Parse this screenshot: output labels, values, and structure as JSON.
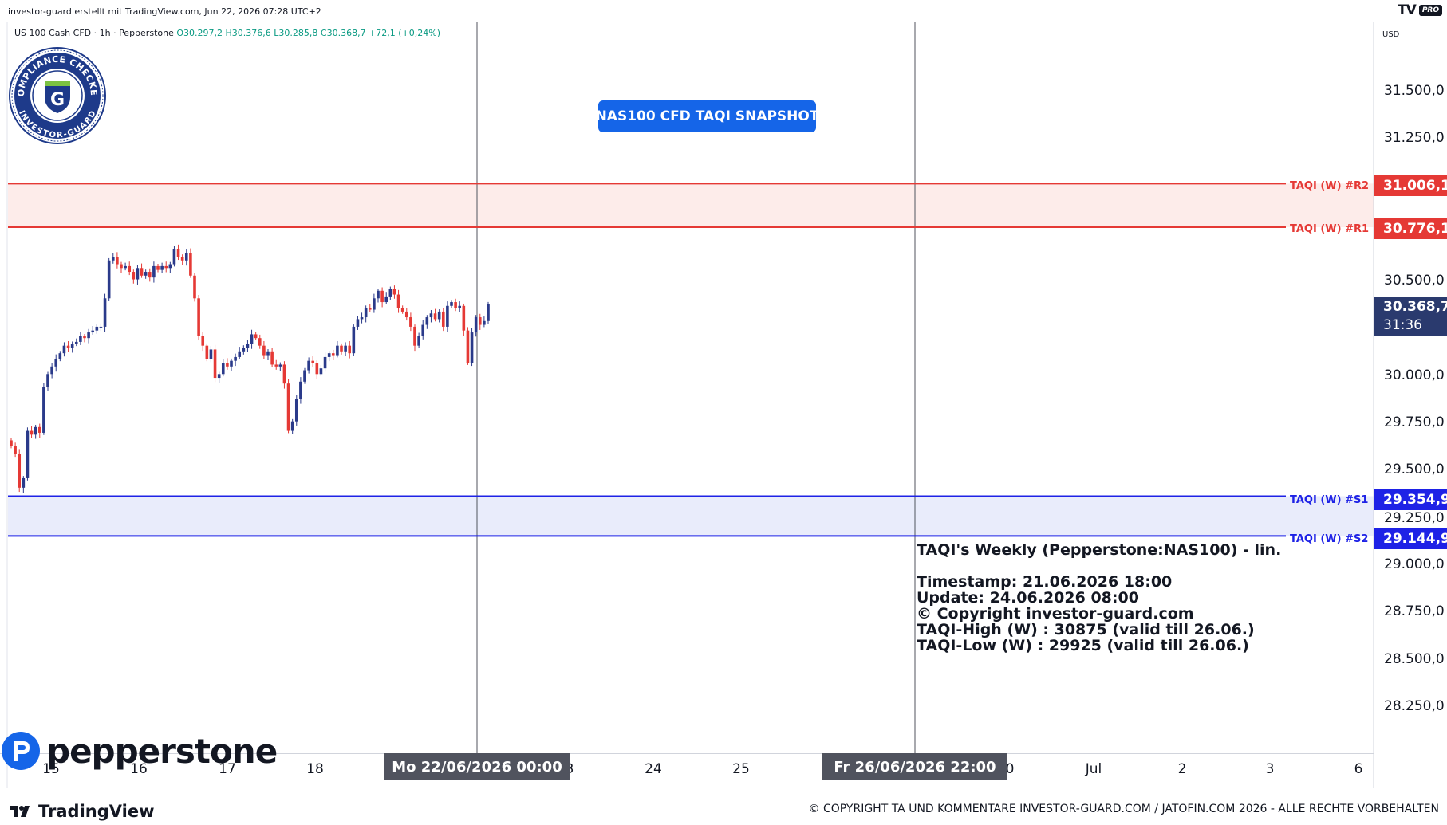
{
  "header": {
    "created_text": "investor-guard erstellt mit TradingView.com, Jun 22, 2026 07:28 UTC+2",
    "tv_pro_logo": "TV",
    "tv_pro_badge": "PRO",
    "currency": "USD"
  },
  "legend": {
    "symbol": "US 100 Cash CFD · 1h · Pepperstone",
    "open": "O30.297,2",
    "high": "H30.376,6",
    "low": "L30.285,8",
    "close": "C30.368,7",
    "change": "+72,1 (+0,24%)"
  },
  "badge": {
    "text_top": "COMPLIANCE CHECKED",
    "text_bottom": "INVESTOR-GUARD",
    "letter": "G"
  },
  "snapshot_label": "NAS100 CFD TAQI SNAPSHOT",
  "info_box": {
    "line1": "TAQI's Weekly (Pepperstone:NAS100) - lin.",
    "line2": "",
    "line3": "Timestamp: 21.06.2026 18:00",
    "line4": "Update: 24.06.2026 08:00",
    "line5": "© Copyright investor-guard.com",
    "line6": "TAQI-High (W) : 30875 (valid till 26.06.)",
    "line7": "TAQI-Low (W) : 29925 (valid till 26.06.)"
  },
  "levels": [
    {
      "name": "TAQI (W) #R2",
      "value": 31006.1,
      "label": "31.006,1",
      "color": "#e53935"
    },
    {
      "name": "TAQI (W) #R1",
      "value": 30776.1,
      "label": "30.776,1",
      "color": "#e53935"
    },
    {
      "name": "TAQI (W) #S1",
      "value": 29354.9,
      "label": "29.354,9",
      "color": "#1e22e6"
    },
    {
      "name": "TAQI (W) #S2",
      "value": 29144.9,
      "label": "29.144,9",
      "color": "#1e22e6"
    }
  ],
  "last_price": {
    "value": 30368.7,
    "label": "30.368,7",
    "countdown": "31:36"
  },
  "time_axis": {
    "ticks": [
      "15",
      "16",
      "17",
      "18",
      "24",
      "25",
      "Jul",
      "2",
      "3",
      "6"
    ],
    "crosshair_1": "Mo 22/06/2026   00:00",
    "crosshair_2": "Fr 26/06/2026   22:00",
    "partial_1": "3",
    "partial_2": "0"
  },
  "branding": {
    "pepperstone": "pepperstone",
    "tradingview": "TradingView",
    "copyright": "© COPYRIGHT TA UND KOMMENTARE INVESTOR-GUARD.COM / JATOFIN.COM 2026 - ALLE RECHTE VORBEHALTEN"
  },
  "colors": {
    "up": "#089981",
    "down": "#f23645",
    "candle_up": "#2a3a8a",
    "candle_down": "#e53935",
    "resistance_zone": "#fdecea",
    "support_zone": "#e9ecfb"
  },
  "chart_data": {
    "type": "candlestick",
    "title": "US 100 Cash CFD · 1h · Pepperstone",
    "currency": "USD",
    "ylim": [
      28100,
      31900
    ],
    "y_ticks": [
      "31.500,0",
      "31.250,0",
      "30.500,0",
      "30.000,0",
      "29.750,0",
      "29.500,0",
      "29.250,0",
      "29.000,0",
      "28.750,0",
      "28.500,0",
      "28.250,0"
    ],
    "y_tick_values": [
      31500,
      31250,
      30500,
      30000,
      29750,
      29500,
      29250,
      29000,
      28750,
      28500,
      28250
    ],
    "x_ticks": [
      "15",
      "16",
      "17",
      "18",
      "24",
      "25",
      "Jul",
      "2",
      "3",
      "6"
    ],
    "resistance_zone": [
      30776.1,
      31006.1
    ],
    "support_zone": [
      29144.9,
      29354.9
    ],
    "closes": [
      29620,
      29580,
      29400,
      29450,
      29700,
      29680,
      29720,
      29690,
      29930,
      30000,
      30040,
      30080,
      30110,
      30150,
      30140,
      30160,
      30170,
      30200,
      30190,
      30220,
      30230,
      30250,
      30250,
      30400,
      30600,
      30620,
      30580,
      30560,
      30570,
      30540,
      30500,
      30560,
      30520,
      30540,
      30510,
      30570,
      30550,
      30570,
      30560,
      30580,
      30660,
      30620,
      30600,
      30640,
      30520,
      30400,
      30200,
      30150,
      30080,
      30130,
      29980,
      30000,
      30060,
      30040,
      30070,
      30090,
      30120,
      30140,
      30160,
      30210,
      30190,
      30150,
      30100,
      30120,
      30050,
      30040,
      30050,
      29950,
      29700,
      29750,
      29870,
      29960,
      30020,
      30070,
      30060,
      30000,
      30030,
      30090,
      30110,
      30100,
      30150,
      30120,
      30150,
      30110,
      30250,
      30290,
      30300,
      30350,
      30340,
      30400,
      30440,
      30380,
      30410,
      30450,
      30420,
      30350,
      30330,
      30300,
      30250,
      30150,
      30200,
      30260,
      30300,
      30320,
      30290,
      30330,
      30250,
      30360,
      30380,
      30350,
      30360,
      30230,
      30060,
      30220,
      30300,
      30260,
      30280,
      30368.7
    ],
    "last_close": 30368.7
  }
}
